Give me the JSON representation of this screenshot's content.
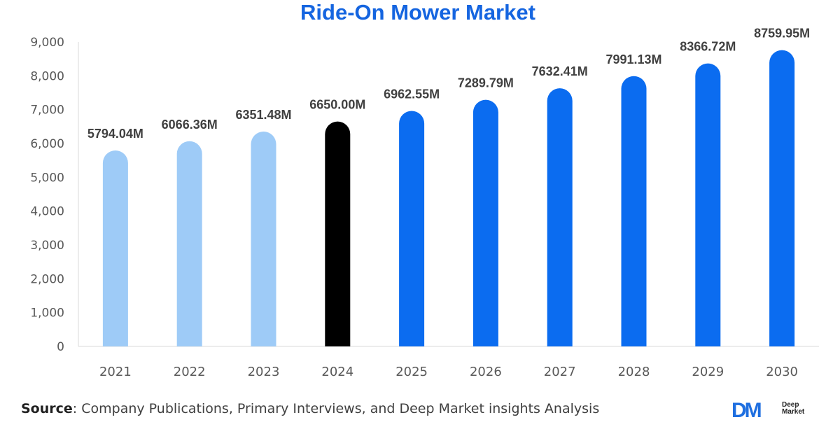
{
  "chart_data": {
    "type": "bar",
    "title": "Ride-On Mower Market",
    "categories": [
      "2021",
      "2022",
      "2023",
      "2024",
      "2025",
      "2026",
      "2027",
      "2028",
      "2029",
      "2030"
    ],
    "values": [
      5794.04,
      6066.36,
      6351.48,
      6650.0,
      6962.55,
      7289.79,
      7632.41,
      7991.13,
      8366.72,
      8759.95
    ],
    "data_labels": [
      "5794.04M",
      "6066.36M",
      "6351.48M",
      "6650.00M",
      "6962.55M",
      "7289.79M",
      "7632.41M",
      "7991.13M",
      "8366.72M",
      "8759.95M"
    ],
    "bar_colors": [
      "#9ecbf7",
      "#9ecbf7",
      "#9ecbf7",
      "#000000",
      "#0b6cf0",
      "#0b6cf0",
      "#0b6cf0",
      "#0b6cf0",
      "#0b6cf0",
      "#0b6cf0"
    ],
    "yticks": [
      "0",
      "1,000",
      "2,000",
      "3,000",
      "4,000",
      "5,000",
      "6,000",
      "7,000",
      "8,000",
      "9,000"
    ],
    "ylim": [
      0,
      9000
    ],
    "xlabel": "",
    "ylabel": "",
    "grid": false
  },
  "title_color": "#1565e0",
  "source": {
    "label": "Source",
    "text": ": Company Publications, Primary Interviews, and Deep Market insights Analysis"
  },
  "logo": {
    "mark": "DM",
    "line1": "Deep",
    "line2": "Market"
  }
}
